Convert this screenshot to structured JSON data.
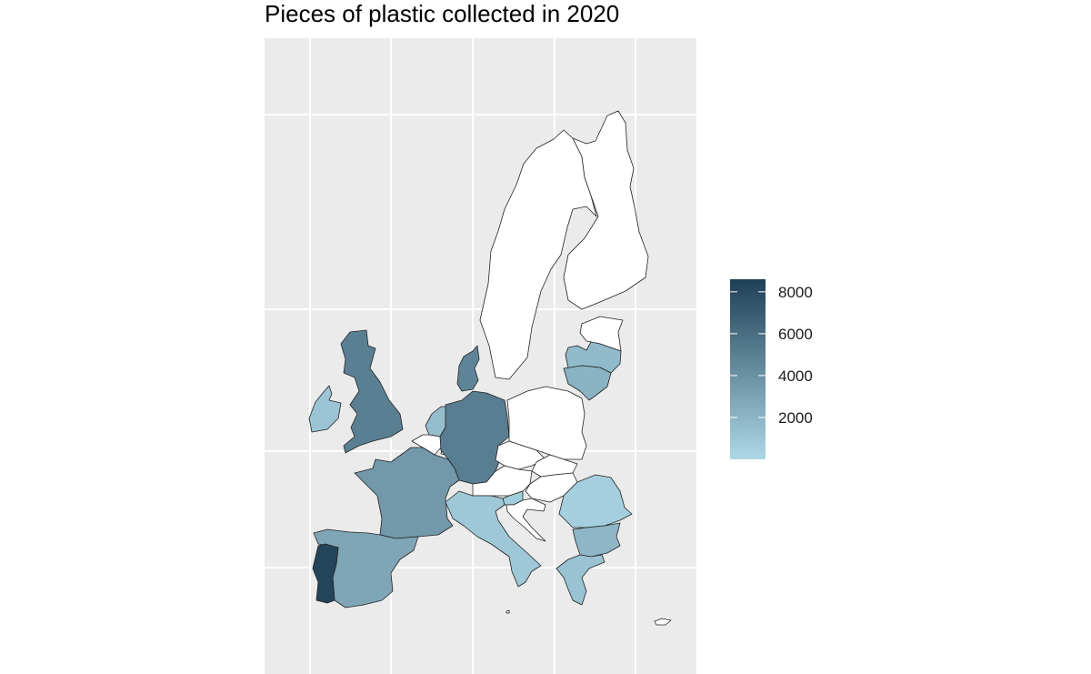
{
  "title": "Pieces of plastic collected in 2020",
  "colors": {
    "panel_background": "#EBEBEB",
    "grid": "#FFFFFF",
    "no_data": "#FFFFFF",
    "scale_low": "#ADD8E6",
    "scale_high": "#1F3F56"
  },
  "legend": {
    "min": 0,
    "max": 8600,
    "ticks": [
      "2000",
      "4000",
      "6000",
      "8000"
    ],
    "tick_values": [
      2000,
      4000,
      6000,
      8000
    ]
  },
  "map_data": {
    "metric": "Pieces of plastic collected in 2020",
    "regions": [
      {
        "name": "Portugal",
        "value": 8300
      },
      {
        "name": "Germany",
        "value": 5100
      },
      {
        "name": "United Kingdom",
        "value": 5000
      },
      {
        "name": "Denmark",
        "value": 4700
      },
      {
        "name": "France",
        "value": 3600
      },
      {
        "name": "Spain",
        "value": 2800
      },
      {
        "name": "Lithuania",
        "value": 2100
      },
      {
        "name": "Bulgaria",
        "value": 1900
      },
      {
        "name": "Latvia",
        "value": 1700
      },
      {
        "name": "Netherlands",
        "value": 1500
      },
      {
        "name": "Greece",
        "value": 1200
      },
      {
        "name": "Ireland",
        "value": 1100
      },
      {
        "name": "Italy",
        "value": 900
      },
      {
        "name": "Slovenia",
        "value": 700
      },
      {
        "name": "Romania",
        "value": 500
      },
      {
        "name": "Sweden",
        "value": null
      },
      {
        "name": "Finland",
        "value": null
      },
      {
        "name": "Estonia",
        "value": null
      },
      {
        "name": "Poland",
        "value": null
      },
      {
        "name": "Czechia",
        "value": null
      },
      {
        "name": "Slovakia",
        "value": null
      },
      {
        "name": "Austria",
        "value": null
      },
      {
        "name": "Hungary",
        "value": null
      },
      {
        "name": "Croatia",
        "value": null
      },
      {
        "name": "Belgium",
        "value": null
      },
      {
        "name": "Luxembourg",
        "value": null
      },
      {
        "name": "Malta",
        "value": null
      },
      {
        "name": "Cyprus",
        "value": null
      }
    ]
  }
}
